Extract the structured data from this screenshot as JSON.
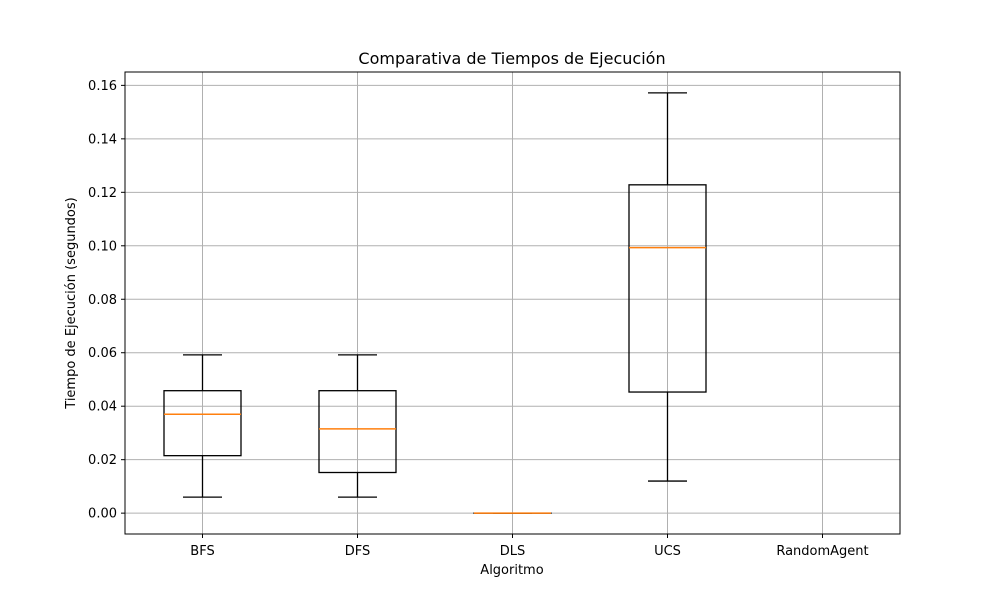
{
  "chart_data": {
    "type": "boxplot",
    "title": "Comparativa de Tiempos de Ejecución",
    "xlabel": "Algoritmo",
    "ylabel": "Tiempo de Ejecución (segundos)",
    "ylim": [
      -0.0078,
      0.165
    ],
    "yticks": [
      0.0,
      0.02,
      0.04,
      0.06,
      0.08,
      0.1,
      0.12,
      0.14,
      0.16
    ],
    "ytick_labels": [
      "0.00",
      "0.02",
      "0.04",
      "0.06",
      "0.08",
      "0.10",
      "0.12",
      "0.14",
      "0.16"
    ],
    "grid": true,
    "categories": [
      "BFS",
      "DFS",
      "DLS",
      "UCS",
      "RandomAgent"
    ],
    "boxes": [
      {
        "category": "BFS",
        "whisker_low": 0.006,
        "q1": 0.0215,
        "median": 0.037,
        "q3": 0.0458,
        "whisker_high": 0.0592
      },
      {
        "category": "DFS",
        "whisker_low": 0.006,
        "q1": 0.0152,
        "median": 0.0315,
        "q3": 0.0458,
        "whisker_high": 0.0592
      },
      {
        "category": "DLS",
        "whisker_low": 0.0,
        "q1": 0.0,
        "median": 0.0,
        "q3": 0.0,
        "whisker_high": 0.0
      },
      {
        "category": "UCS",
        "whisker_low": 0.012,
        "q1": 0.0453,
        "median": 0.0993,
        "q3": 0.1228,
        "whisker_high": 0.1572
      },
      {
        "category": "RandomAgent",
        "whisker_low": null,
        "q1": null,
        "median": null,
        "q3": null,
        "whisker_high": null
      }
    ],
    "colors": {
      "box": "#000000",
      "median": "#ff7f0e",
      "grid": "#b0b0b0"
    }
  }
}
